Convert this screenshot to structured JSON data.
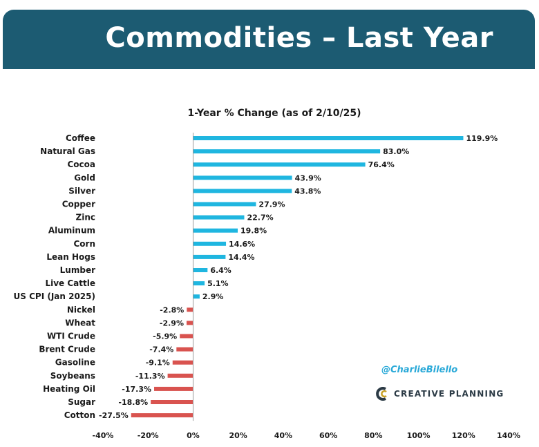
{
  "slide_title": "Commodities – Last Year",
  "handle": "@CharlieBilello",
  "brand": "CREATIVE PLANNING",
  "colors": {
    "header": "#1c5b72",
    "positive": "#1fb6e0",
    "negative": "#d9534f",
    "handle": "#29a9d8"
  },
  "chart_data": {
    "type": "bar",
    "orientation": "horizontal",
    "title": "1-Year % Change (as of 2/10/25)",
    "categories": [
      "Coffee",
      "Natural Gas",
      "Cocoa",
      "Gold",
      "Silver",
      "Copper",
      "Zinc",
      "Aluminum",
      "Corn",
      "Lean Hogs",
      "Lumber",
      "Live Cattle",
      "US CPI (Jan 2025)",
      "Nickel",
      "Wheat",
      "WTI Crude",
      "Brent Crude",
      "Gasoline",
      "Soybeans",
      "Heating Oil",
      "Sugar",
      "Cotton"
    ],
    "values": [
      119.9,
      83.0,
      76.4,
      43.9,
      43.8,
      27.9,
      22.7,
      19.8,
      14.6,
      14.4,
      6.4,
      5.1,
      2.9,
      -2.8,
      -2.9,
      -5.9,
      -7.4,
      -9.1,
      -11.3,
      -17.3,
      -18.8,
      -27.5
    ],
    "value_labels": [
      "119.9%",
      "83.0%",
      "76.4%",
      "43.9%",
      "43.8%",
      "27.9%",
      "22.7%",
      "19.8%",
      "14.6%",
      "14.4%",
      "6.4%",
      "5.1%",
      "2.9%",
      "-2.8%",
      "-2.9%",
      "-5.9%",
      "-7.4%",
      "-9.1%",
      "-11.3%",
      "-17.3%",
      "-18.8%",
      "-27.5%"
    ],
    "xlim": [
      -40,
      140
    ],
    "xticks": [
      "-40%",
      "-20%",
      "0%",
      "20%",
      "40%",
      "60%",
      "80%",
      "100%",
      "120%",
      "140%"
    ],
    "xtick_values": [
      -40,
      -20,
      0,
      20,
      40,
      60,
      80,
      100,
      120,
      140
    ],
    "grid": false
  }
}
